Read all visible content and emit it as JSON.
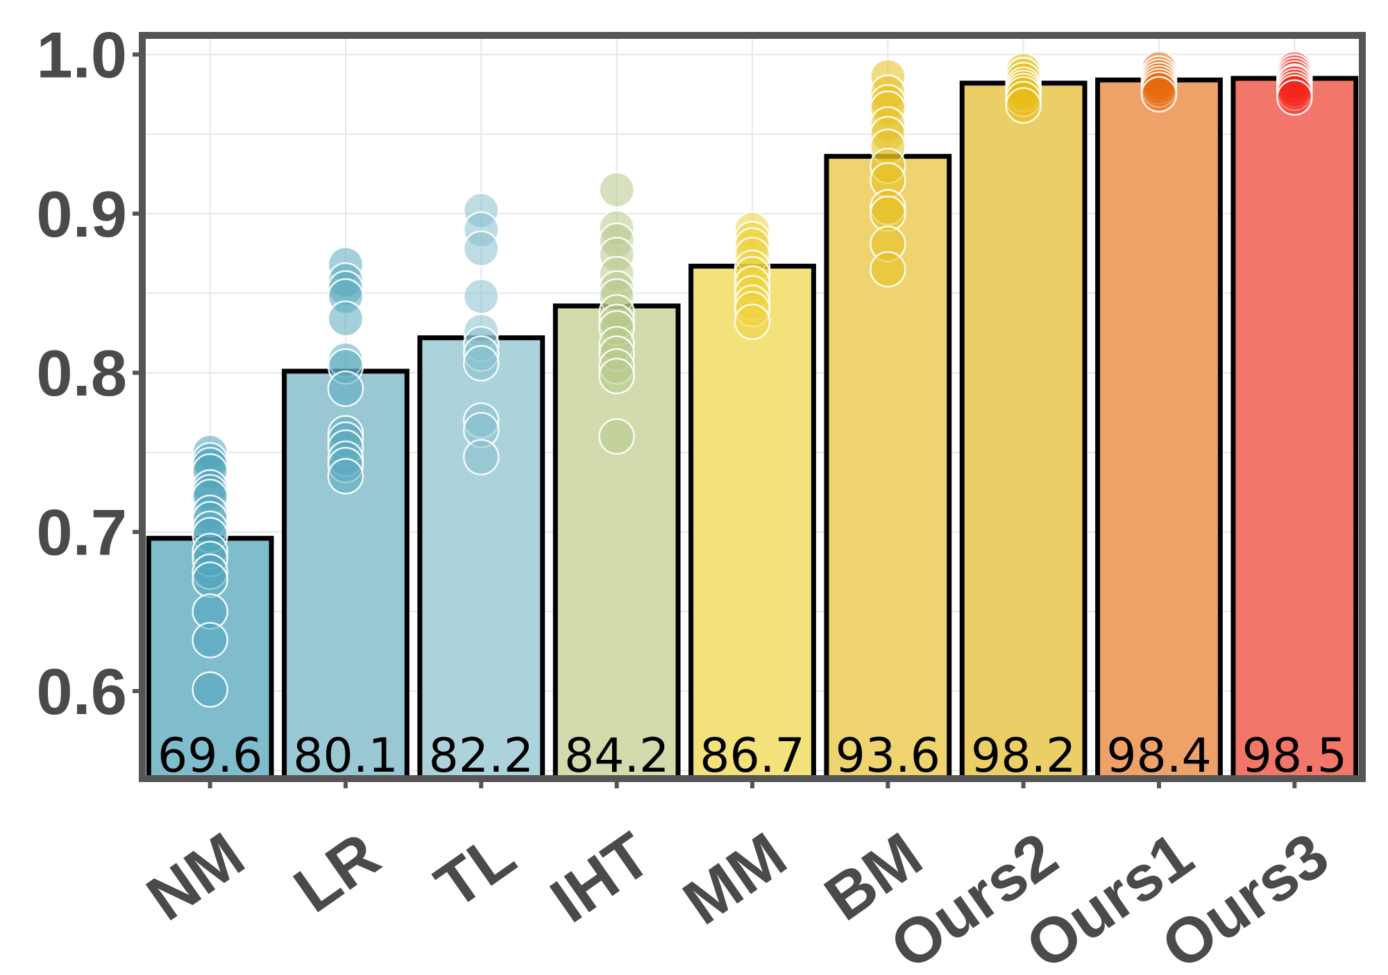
{
  "chart_data": {
    "type": "bar",
    "title": "",
    "xlabel": "",
    "ylabel": "",
    "ylim": [
      0.545,
      1.012
    ],
    "yticks": [
      "0.6",
      "0.7",
      "0.8",
      "0.9",
      "1.0"
    ],
    "grid": true,
    "categories": [
      "NM",
      "LR",
      "TL",
      "IHT",
      "MM",
      "BM",
      "Ours2",
      "Ours1",
      "Ours3"
    ],
    "values": [
      0.696,
      0.801,
      0.822,
      0.842,
      0.867,
      0.936,
      0.982,
      0.984,
      0.985
    ],
    "bar_labels": [
      "69.6",
      "80.1",
      "82.2",
      "84.2",
      "86.7",
      "93.6",
      "98.2",
      "98.4",
      "98.5"
    ],
    "bar_colors": [
      "#7fbccc",
      "#99c7d4",
      "#acd3db",
      "#d3dbad",
      "#f3e17a",
      "#eed36e",
      "#ebcf66",
      "#eea268",
      "#f2766a"
    ],
    "point_colors": [
      "#4ea4bb",
      "#5aa9c0",
      "#86c0cd",
      "#b6c98a",
      "#efd23a",
      "#e6bf1f",
      "#e8bc16",
      "#e8690f",
      "#f2271b"
    ],
    "points": [
      [
        0.75,
        0.745,
        0.742,
        0.738,
        0.728,
        0.725,
        0.722,
        0.712,
        0.708,
        0.702,
        0.698,
        0.688,
        0.683,
        0.675,
        0.67,
        0.65,
        0.632,
        0.601
      ],
      [
        0.868,
        0.858,
        0.853,
        0.848,
        0.834,
        0.808,
        0.804,
        0.79,
        0.762,
        0.758,
        0.753,
        0.746,
        0.742,
        0.735
      ],
      [
        0.902,
        0.89,
        0.878,
        0.848,
        0.826,
        0.818,
        0.812,
        0.806,
        0.77,
        0.764,
        0.747
      ],
      [
        0.915,
        0.891,
        0.883,
        0.874,
        0.862,
        0.853,
        0.848,
        0.838,
        0.832,
        0.828,
        0.818,
        0.812,
        0.804,
        0.798,
        0.76
      ],
      [
        0.89,
        0.884,
        0.88,
        0.874,
        0.866,
        0.862,
        0.856,
        0.85,
        0.844,
        0.84,
        0.832
      ],
      [
        0.986,
        0.976,
        0.97,
        0.966,
        0.956,
        0.95,
        0.942,
        0.93,
        0.921,
        0.904,
        0.9,
        0.881,
        0.865
      ],
      [
        0.99,
        0.987,
        0.984,
        0.981,
        0.979,
        0.977,
        0.975,
        0.972,
        0.968
      ],
      [
        0.991,
        0.988,
        0.986,
        0.984,
        0.982,
        0.98,
        0.978,
        0.975
      ],
      [
        0.991,
        0.989,
        0.987,
        0.985,
        0.983,
        0.982,
        0.98,
        0.978,
        0.976,
        0.973
      ]
    ],
    "axis_color": "#555555",
    "grid_color": "#e6e6e6"
  }
}
